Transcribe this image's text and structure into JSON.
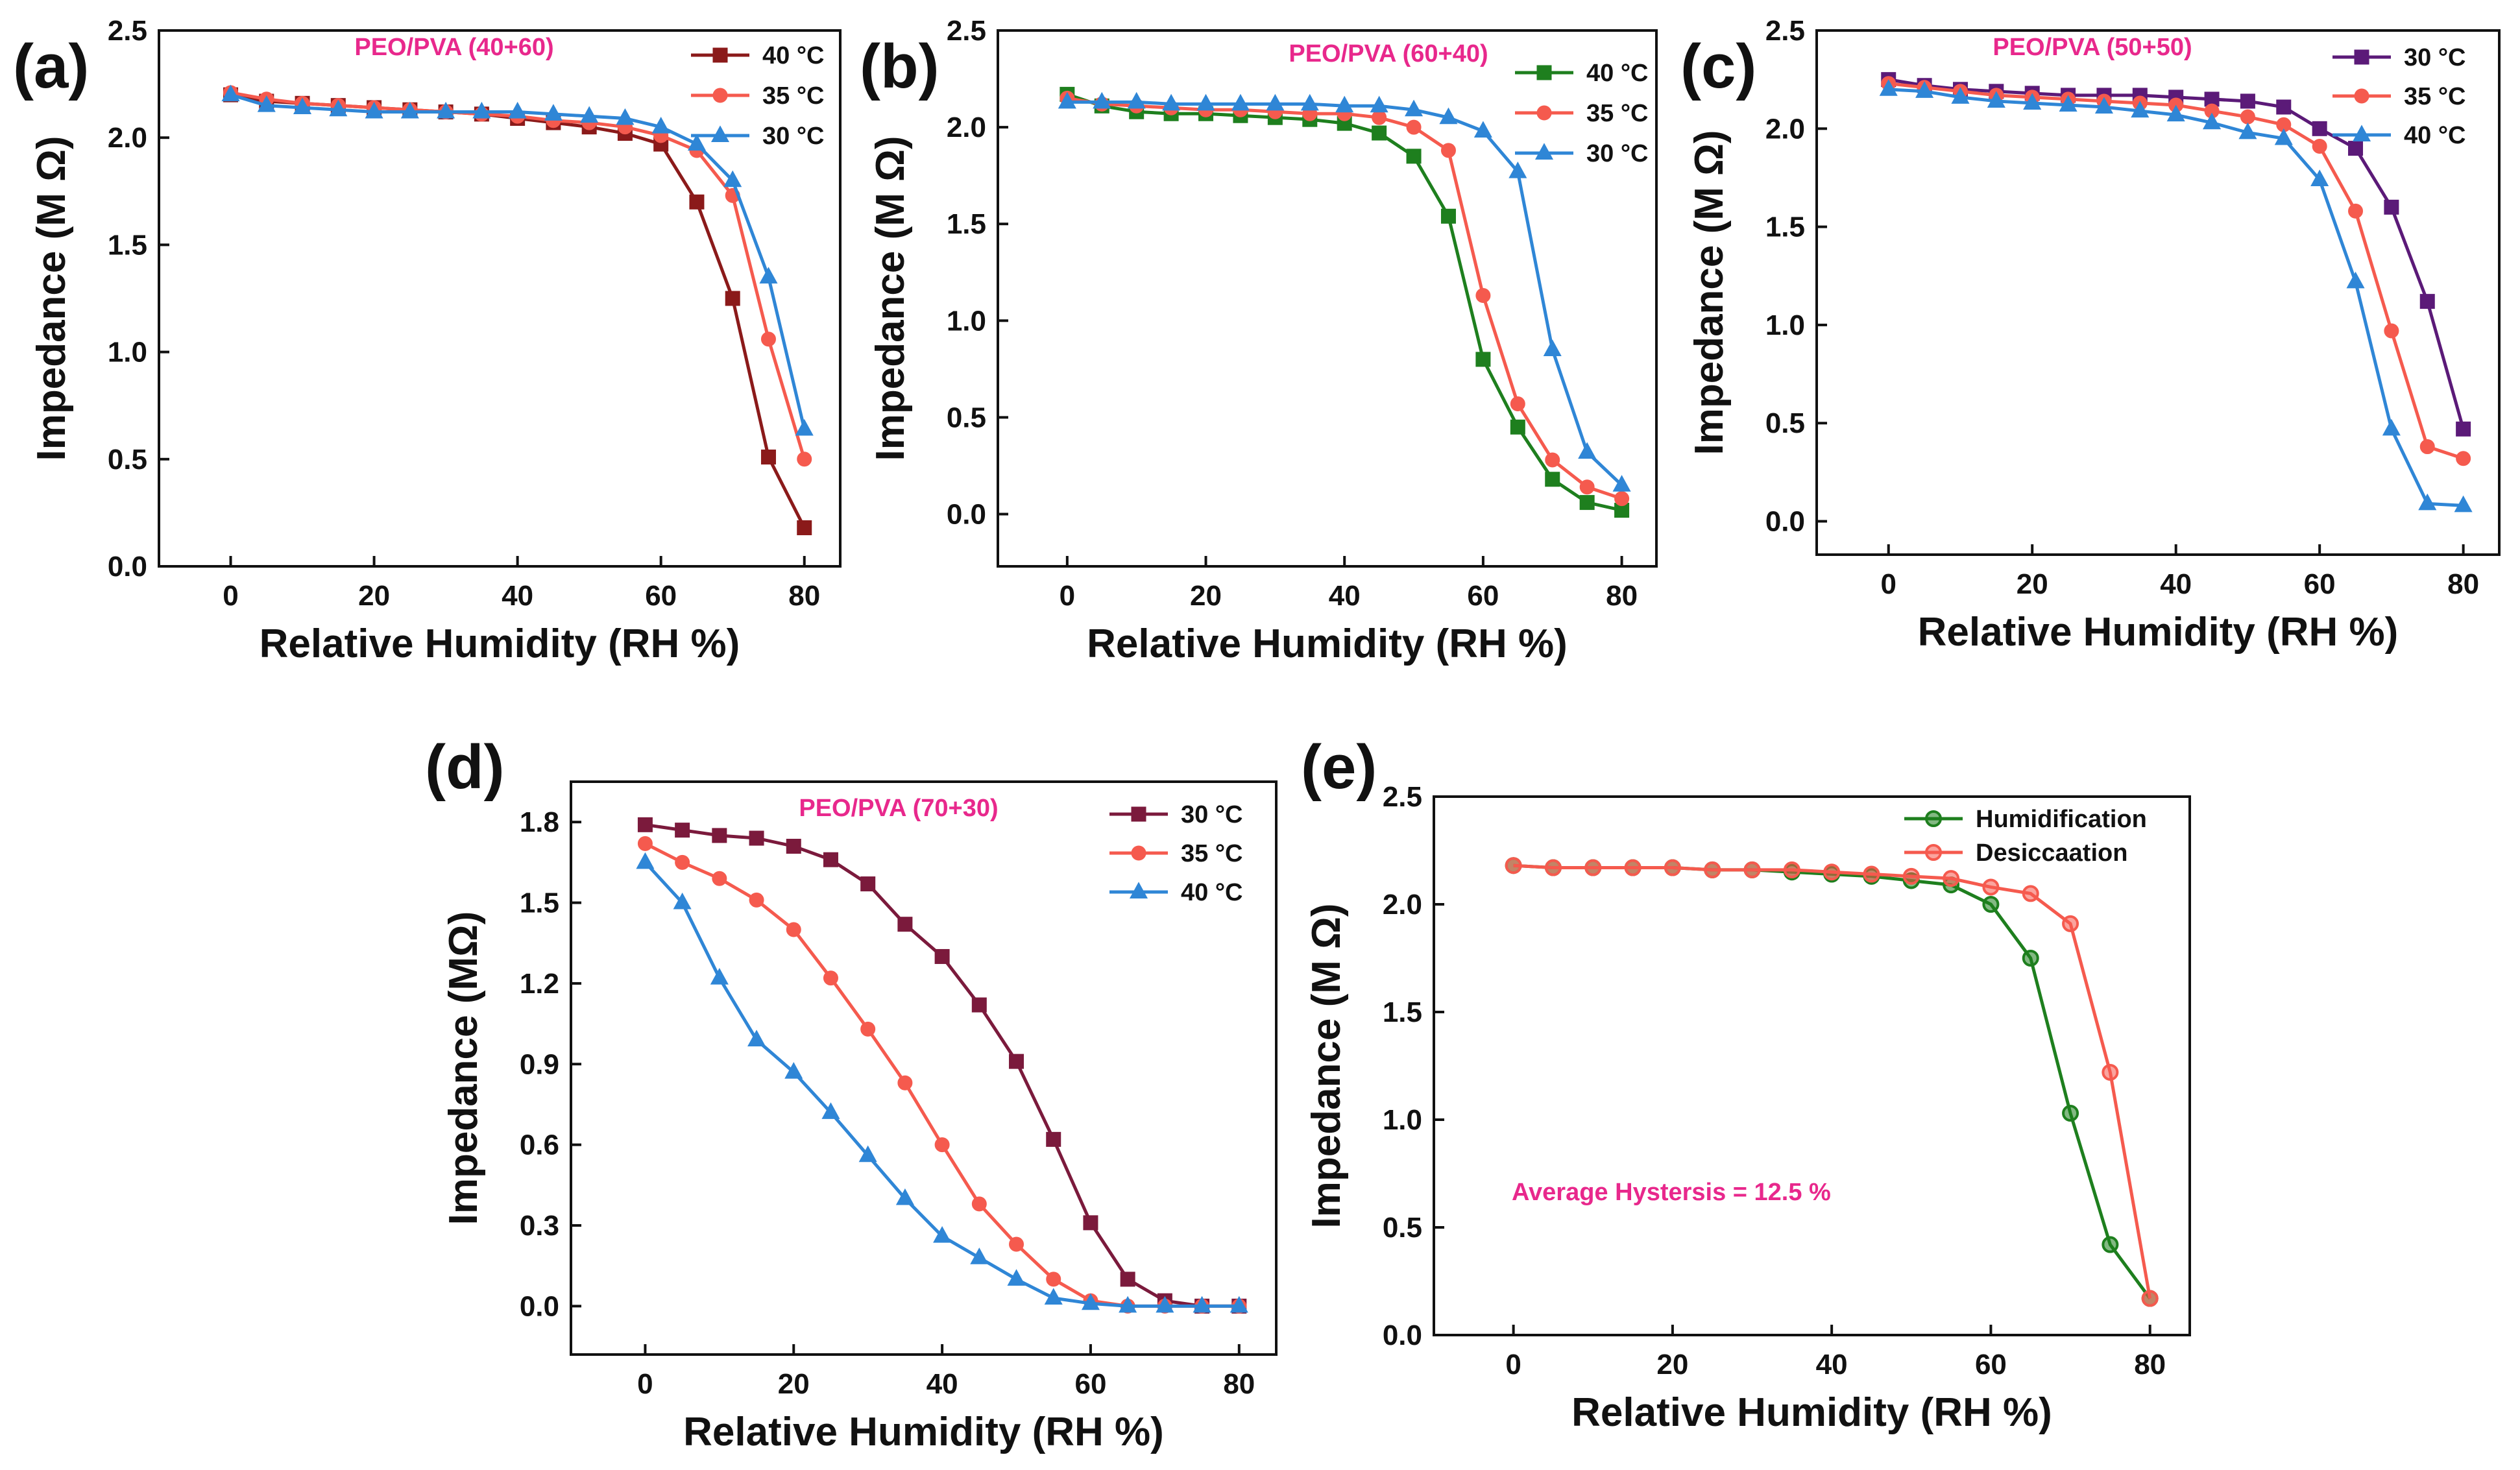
{
  "figure": {
    "panels": [
      "a",
      "b",
      "c",
      "d",
      "e"
    ]
  },
  "chart_data": [
    {
      "id": "a",
      "panel_label": "(a)",
      "type": "line",
      "title": "PEO/PVA (40+60)",
      "title_color": "#e8288c",
      "xlabel": "Relative Humidity (RH %)",
      "ylabel": "Impedance (M Ω)",
      "xlim": [
        -10,
        85
      ],
      "ylim": [
        0,
        2.5
      ],
      "xticks": [
        0,
        20,
        40,
        60,
        80
      ],
      "yticks": [
        0.0,
        0.5,
        1.0,
        1.5,
        2.0,
        2.5
      ],
      "ytick_labels": [
        "0.0",
        "0.5",
        "1.0",
        "1.5",
        "2.0",
        "2.5"
      ],
      "x": [
        0,
        5,
        10,
        15,
        20,
        25,
        30,
        35,
        40,
        45,
        50,
        55,
        60,
        65,
        70,
        75,
        80
      ],
      "legend_position": "top-right",
      "series": [
        {
          "name": "40 °C",
          "color": "#8b1a1a",
          "marker": "square",
          "values": [
            2.2,
            2.17,
            2.16,
            2.15,
            2.14,
            2.13,
            2.12,
            2.11,
            2.09,
            2.07,
            2.05,
            2.02,
            1.97,
            1.7,
            1.25,
            0.51,
            0.18
          ]
        },
        {
          "name": "35 °C",
          "color": "#f55a4e",
          "marker": "circle",
          "values": [
            2.21,
            2.18,
            2.16,
            2.15,
            2.14,
            2.13,
            2.12,
            2.11,
            2.1,
            2.08,
            2.07,
            2.05,
            2.01,
            1.94,
            1.73,
            1.06,
            0.5
          ]
        },
        {
          "name": "30 °C",
          "color": "#2f86d6",
          "marker": "triangle",
          "values": [
            2.2,
            2.15,
            2.14,
            2.13,
            2.12,
            2.12,
            2.12,
            2.12,
            2.12,
            2.11,
            2.1,
            2.09,
            2.05,
            1.97,
            1.8,
            1.35,
            0.64
          ]
        }
      ]
    },
    {
      "id": "b",
      "panel_label": "(b)",
      "type": "line",
      "title": "PEO/PVA (60+40)",
      "title_color": "#e8288c",
      "xlabel": "Relative Humidity (RH %)",
      "ylabel": "Impedance (M Ω)",
      "xlim": [
        -10,
        85
      ],
      "ylim": [
        -0.27,
        2.5
      ],
      "xticks": [
        0,
        20,
        40,
        60,
        80
      ],
      "yticks": [
        0.0,
        0.5,
        1.0,
        1.5,
        2.0,
        2.5
      ],
      "ytick_labels": [
        "0.0",
        "0.5",
        "1.0",
        "1.5",
        "2.0",
        "2.5"
      ],
      "x": [
        0,
        5,
        10,
        15,
        20,
        25,
        30,
        35,
        40,
        45,
        50,
        55,
        60,
        65,
        70,
        75,
        80
      ],
      "legend_position": "top-right",
      "series": [
        {
          "name": "40 °C",
          "color": "#1e7f1e",
          "marker": "square",
          "values": [
            2.17,
            2.11,
            2.08,
            2.07,
            2.07,
            2.06,
            2.05,
            2.04,
            2.02,
            1.97,
            1.85,
            1.54,
            0.8,
            0.45,
            0.18,
            0.06,
            0.02
          ]
        },
        {
          "name": "35 °C",
          "color": "#f55a4e",
          "marker": "circle",
          "values": [
            2.15,
            2.12,
            2.11,
            2.1,
            2.09,
            2.09,
            2.08,
            2.07,
            2.07,
            2.05,
            2.0,
            1.88,
            1.13,
            0.57,
            0.28,
            0.14,
            0.08
          ]
        },
        {
          "name": "30 °C",
          "color": "#2f86d6",
          "marker": "triangle",
          "values": [
            2.13,
            2.13,
            2.13,
            2.12,
            2.12,
            2.12,
            2.12,
            2.12,
            2.11,
            2.11,
            2.09,
            2.05,
            1.98,
            1.77,
            0.85,
            0.32,
            0.15
          ]
        }
      ]
    },
    {
      "id": "c",
      "panel_label": "(c)",
      "type": "line",
      "title": "PEO/PVA (50+50)",
      "title_color": "#e8288c",
      "xlabel": "Relative Humidity (RH %)",
      "ylabel": "Impedance (M Ω)",
      "xlim": [
        -10,
        85
      ],
      "ylim": [
        -0.17,
        2.5
      ],
      "xticks": [
        0,
        20,
        40,
        60,
        80
      ],
      "yticks": [
        0.0,
        0.5,
        1.0,
        1.5,
        2.0,
        2.5
      ],
      "ytick_labels": [
        "0.0",
        "0.5",
        "1.0",
        "1.5",
        "2.0",
        "2.5"
      ],
      "x": [
        0,
        5,
        10,
        15,
        20,
        25,
        30,
        35,
        40,
        45,
        50,
        55,
        60,
        65,
        70,
        75,
        80
      ],
      "legend_position": "top-right",
      "series": [
        {
          "name": "30 °C",
          "color": "#5b1a78",
          "marker": "square",
          "values": [
            2.25,
            2.22,
            2.2,
            2.19,
            2.18,
            2.17,
            2.17,
            2.17,
            2.16,
            2.15,
            2.14,
            2.11,
            2.0,
            1.9,
            1.6,
            1.12,
            0.47
          ]
        },
        {
          "name": "35 °C",
          "color": "#f55a4e",
          "marker": "circle",
          "values": [
            2.23,
            2.21,
            2.19,
            2.17,
            2.16,
            2.15,
            2.14,
            2.13,
            2.12,
            2.09,
            2.06,
            2.02,
            1.91,
            1.58,
            0.97,
            0.38,
            0.32
          ]
        },
        {
          "name": "40 °C",
          "color": "#2f86d6",
          "marker": "triangle",
          "values": [
            2.2,
            2.19,
            2.16,
            2.14,
            2.13,
            2.12,
            2.11,
            2.09,
            2.07,
            2.03,
            1.98,
            1.95,
            1.74,
            1.22,
            0.47,
            0.09,
            0.08
          ]
        }
      ]
    },
    {
      "id": "d",
      "panel_label": "(d)",
      "type": "line",
      "title": "PEO/PVA (70+30)",
      "title_color": "#e8288c",
      "xlabel": "Relative Humidity (RH %)",
      "ylabel": "Impedance (MΩ)",
      "xlim": [
        -10,
        85
      ],
      "ylim": [
        -0.18,
        1.95
      ],
      "xticks": [
        0,
        20,
        40,
        60,
        80
      ],
      "yticks": [
        0.0,
        0.3,
        0.6,
        0.9,
        1.2,
        1.5,
        1.8
      ],
      "ytick_labels": [
        "0.0",
        "0.3",
        "0.6",
        "0.9",
        "1.2",
        "1.5",
        "1.8"
      ],
      "x": [
        0,
        5,
        10,
        15,
        20,
        25,
        30,
        35,
        40,
        45,
        50,
        55,
        60,
        65,
        70,
        75,
        80
      ],
      "legend_position": "top-right",
      "series": [
        {
          "name": "30 °C",
          "color": "#7b1a3c",
          "marker": "square",
          "values": [
            1.79,
            1.77,
            1.75,
            1.74,
            1.71,
            1.66,
            1.57,
            1.42,
            1.3,
            1.12,
            0.91,
            0.62,
            0.31,
            0.1,
            0.02,
            0.0,
            0.0
          ]
        },
        {
          "name": "35 °C",
          "color": "#f55a4e",
          "marker": "circle",
          "values": [
            1.72,
            1.65,
            1.59,
            1.51,
            1.4,
            1.22,
            1.03,
            0.83,
            0.6,
            0.38,
            0.23,
            0.1,
            0.02,
            0.0,
            0.0,
            0.0,
            0.0
          ]
        },
        {
          "name": "40 °C",
          "color": "#2f86d6",
          "marker": "triangle",
          "values": [
            1.65,
            1.5,
            1.22,
            0.99,
            0.87,
            0.72,
            0.56,
            0.4,
            0.26,
            0.18,
            0.1,
            0.03,
            0.01,
            0.0,
            0.0,
            0.0,
            0.0
          ]
        }
      ]
    },
    {
      "id": "e",
      "panel_label": "(e)",
      "type": "line",
      "title": "",
      "annotation": "Average Hystersis  = 12.5 %",
      "annotation_color": "#e8288c",
      "xlabel": "Relative Humidity (RH %)",
      "ylabel": "Impedance (M Ω)",
      "xlim": [
        -10,
        85
      ],
      "ylim": [
        0,
        2.5
      ],
      "xticks": [
        0,
        20,
        40,
        60,
        80
      ],
      "yticks": [
        0.0,
        0.5,
        1.0,
        1.5,
        2.0,
        2.5
      ],
      "ytick_labels": [
        "0.0",
        "0.5",
        "1.0",
        "1.5",
        "2.0",
        "2.5"
      ],
      "x": [
        0,
        5,
        10,
        15,
        20,
        25,
        30,
        35,
        40,
        45,
        50,
        55,
        60,
        65,
        70,
        75,
        80
      ],
      "legend_position": "top-right",
      "series": [
        {
          "name": "Humidification",
          "color": "#1e7f1e",
          "marker": "circle",
          "values": [
            2.18,
            2.17,
            2.17,
            2.17,
            2.17,
            2.16,
            2.16,
            2.15,
            2.14,
            2.13,
            2.11,
            2.09,
            2.0,
            1.75,
            1.03,
            0.42,
            0.17
          ]
        },
        {
          "name": "Desiccaation",
          "color": "#f55a4e",
          "marker": "circle",
          "values": [
            2.18,
            2.17,
            2.17,
            2.17,
            2.17,
            2.16,
            2.16,
            2.16,
            2.15,
            2.14,
            2.13,
            2.12,
            2.08,
            2.05,
            1.91,
            1.22,
            0.17
          ]
        }
      ]
    }
  ]
}
